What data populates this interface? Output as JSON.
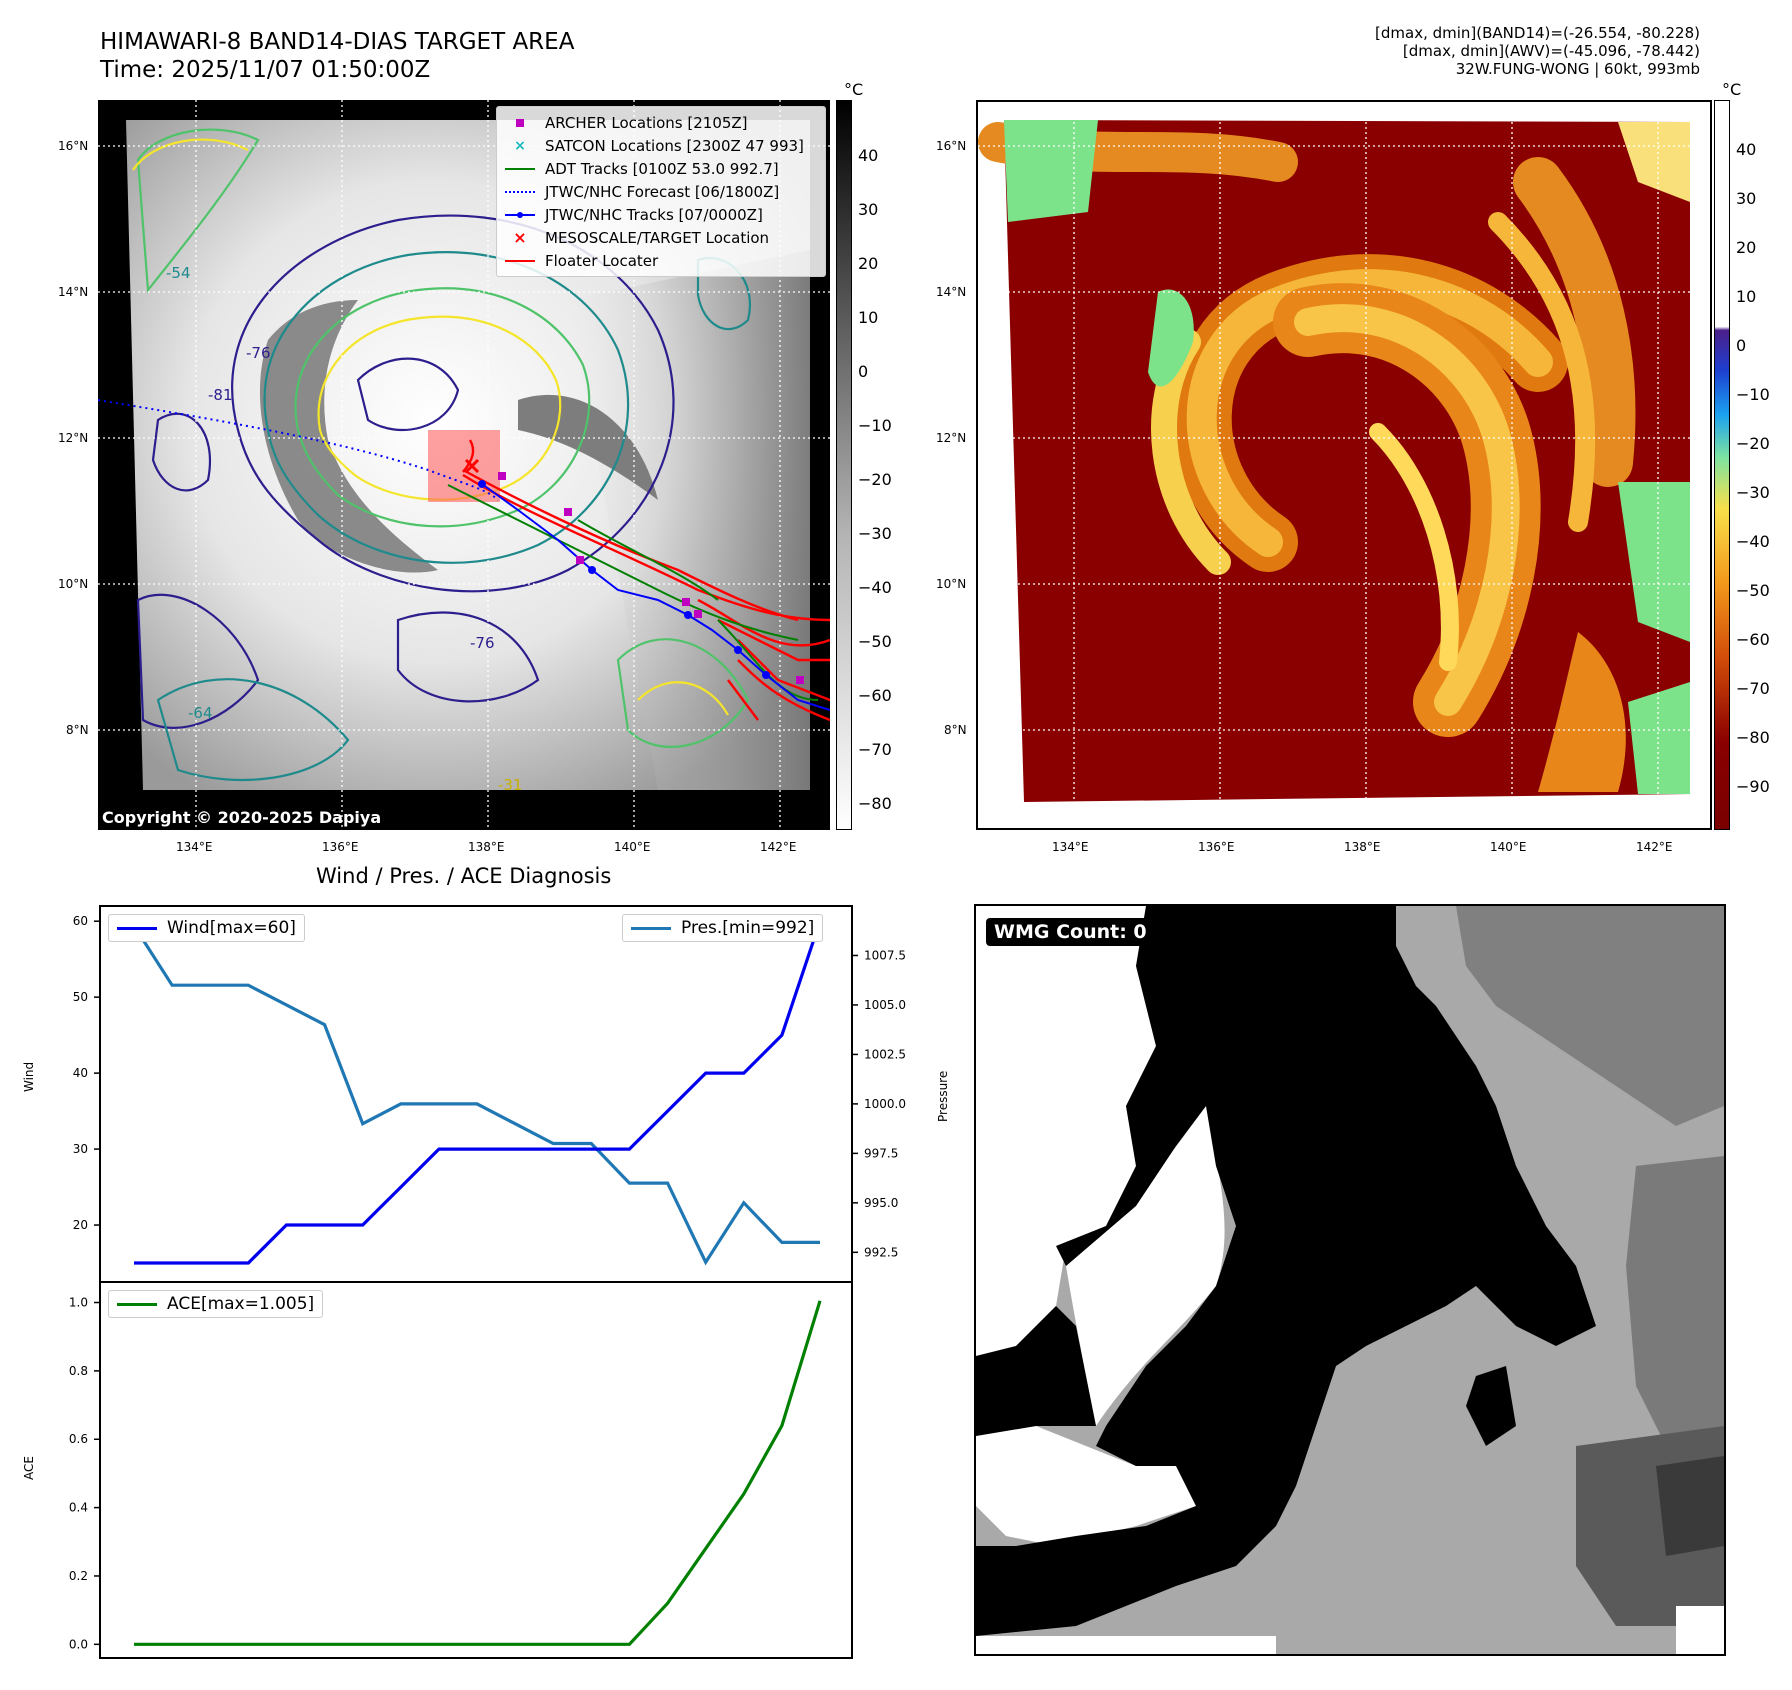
{
  "header": {
    "title_line1": "HIMAWARI-8 BAND14-DIAS TARGET AREA",
    "title_line2": "Time: 2025/11/07 01:50:00Z",
    "stats_line1": "[dmax, dmin](BAND14)=(-26.554, -80.228)",
    "stats_line2": "[dmax, dmin](AWV)=(-45.096, -78.442)",
    "stats_line3": "32W.FUNG-WONG | 60kt, 993mb"
  },
  "map": {
    "lon_labels": [
      "134°E",
      "136°E",
      "138°E",
      "140°E",
      "142°E"
    ],
    "lat_labels": [
      "16°N",
      "14°N",
      "12°N",
      "10°N",
      "8°N"
    ],
    "copyright": "Copyright © 2020-2025 Dapiya",
    "legend": [
      {
        "label": "ARCHER Locations [2105Z]",
        "color": "#c000c0",
        "symbol": "square"
      },
      {
        "label": "SATCON Locations [2300Z 47 993]",
        "color": "#17b9b9",
        "symbol": "x"
      },
      {
        "label": "ADT Tracks [0100Z 53.0 992.7]",
        "color": "#008000",
        "symbol": "line"
      },
      {
        "label": "JTWC/NHC Forecast [06/1800Z]",
        "color": "#0000ff",
        "symbol": "dotted"
      },
      {
        "label": "JTWC/NHC Tracks [07/0000Z]",
        "color": "#0000ff",
        "symbol": "line-dot"
      },
      {
        "label": "MESOSCALE/TARGET Location",
        "color": "#ff0000",
        "symbol": "x"
      },
      {
        "label": "Floater Locater",
        "color": "#ff0000",
        "symbol": "line"
      }
    ],
    "contour_labels": [
      "-76",
      "-81",
      "-64",
      "-54",
      "-31",
      "-76"
    ],
    "colorbar_unit": "°C",
    "gray_colorbar_ticks": [
      "40",
      "30",
      "20",
      "10",
      "0",
      "−10",
      "−20",
      "−30",
      "−40",
      "−50",
      "−60",
      "−70",
      "−80"
    ],
    "color_colorbar_ticks": [
      "40",
      "30",
      "20",
      "10",
      "0",
      "−10",
      "−20",
      "−30",
      "−40",
      "−50",
      "−60",
      "−70",
      "−80",
      "−90"
    ],
    "colors": {
      "contour_dark": "#2c1e8c",
      "contour_teal": "#1f8a8c",
      "contour_green": "#4fc36a",
      "contour_yellow": "#f5e52a"
    }
  },
  "diagnosis": {
    "title": "Wind / Pres. / ACE Diagnosis",
    "wind_legend": "Wind[max=60]",
    "pres_legend": "Pres.[min=992]",
    "ace_legend": "ACE[max=1.005]",
    "wind_axis_label": "Wind",
    "pres_axis_label": "Pressure",
    "ace_axis_label": "ACE",
    "wmg_count": "WMG Count: 0"
  },
  "chart_data": [
    {
      "type": "line",
      "title": "Wind / Pres. / ACE Diagnosis",
      "ylabel": "Wind",
      "y2label": "Pressure",
      "ylim": [
        12.5,
        62
      ],
      "y2lim": [
        991,
        1010
      ],
      "yticks": [
        20,
        30,
        40,
        50,
        60
      ],
      "y2ticks": [
        992.5,
        995.0,
        997.5,
        1000.0,
        1002.5,
        1005.0,
        1007.5
      ],
      "series": [
        {
          "name": "Wind[max=60]",
          "color": "#0000ee",
          "values": [
            15,
            15,
            15,
            15,
            20,
            20,
            20,
            25,
            30,
            30,
            30,
            30,
            30,
            30,
            35,
            40,
            40,
            45,
            60
          ]
        },
        {
          "name": "Pres.[min=992]",
          "color": "#1f77b4",
          "values": [
            1009,
            1006,
            1006,
            1006,
            1005,
            1004,
            999,
            1000,
            1000,
            1000,
            999,
            998,
            998,
            996,
            996,
            992,
            995,
            993,
            993
          ]
        }
      ]
    },
    {
      "type": "line",
      "ylabel": "ACE",
      "ylim": [
        -0.04,
        1.06
      ],
      "yticks": [
        0.0,
        0.2,
        0.4,
        0.6,
        0.8,
        1.0
      ],
      "series": [
        {
          "name": "ACE[max=1.005]",
          "color": "#008000",
          "values": [
            0,
            0,
            0,
            0,
            0,
            0,
            0,
            0,
            0,
            0,
            0,
            0,
            0,
            0,
            0.12,
            0.28,
            0.44,
            0.64,
            1.005
          ]
        }
      ]
    }
  ]
}
